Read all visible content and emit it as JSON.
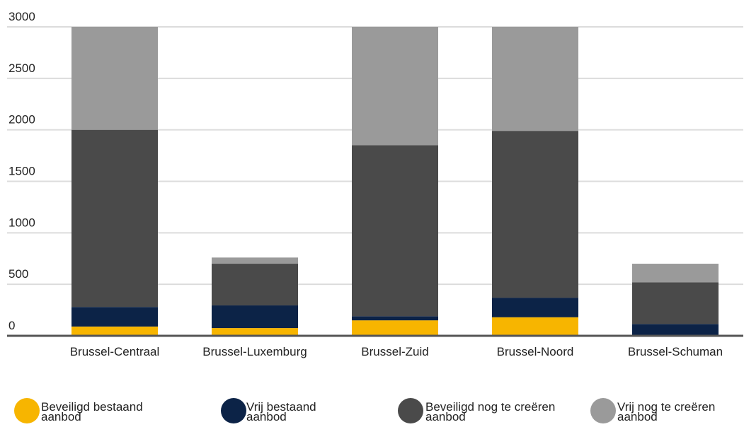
{
  "chart_data": {
    "type": "stacked_bar",
    "categories": [
      "Brussel-Centraal",
      "Brussel-Luxemburg",
      "Brussel-Zuid",
      "Brussel-Noord",
      "Brussel-Schuman"
    ],
    "series": [
      {
        "name": "Beveiligd bestaand aanbod",
        "color": "#f7b500",
        "values": [
          90,
          75,
          150,
          180,
          0
        ]
      },
      {
        "name": "Vrij bestaand aanbod",
        "color": "#0c2347",
        "values": [
          190,
          220,
          40,
          190,
          115
        ]
      },
      {
        "name": "Beveiligd nog te creëren aanbod",
        "color": "#4a4a4a",
        "values": [
          1720,
          405,
          1660,
          1620,
          405
        ]
      },
      {
        "name": "Vrij nog te creëren aanbod",
        "color": "#9a9a9a",
        "values": [
          1000,
          60,
          1150,
          1010,
          180
        ]
      }
    ],
    "ylim": [
      0,
      3000
    ],
    "yticks": [
      0,
      500,
      1000,
      1500,
      2000,
      2500,
      3000
    ],
    "grid": true,
    "legend": "bottom"
  }
}
